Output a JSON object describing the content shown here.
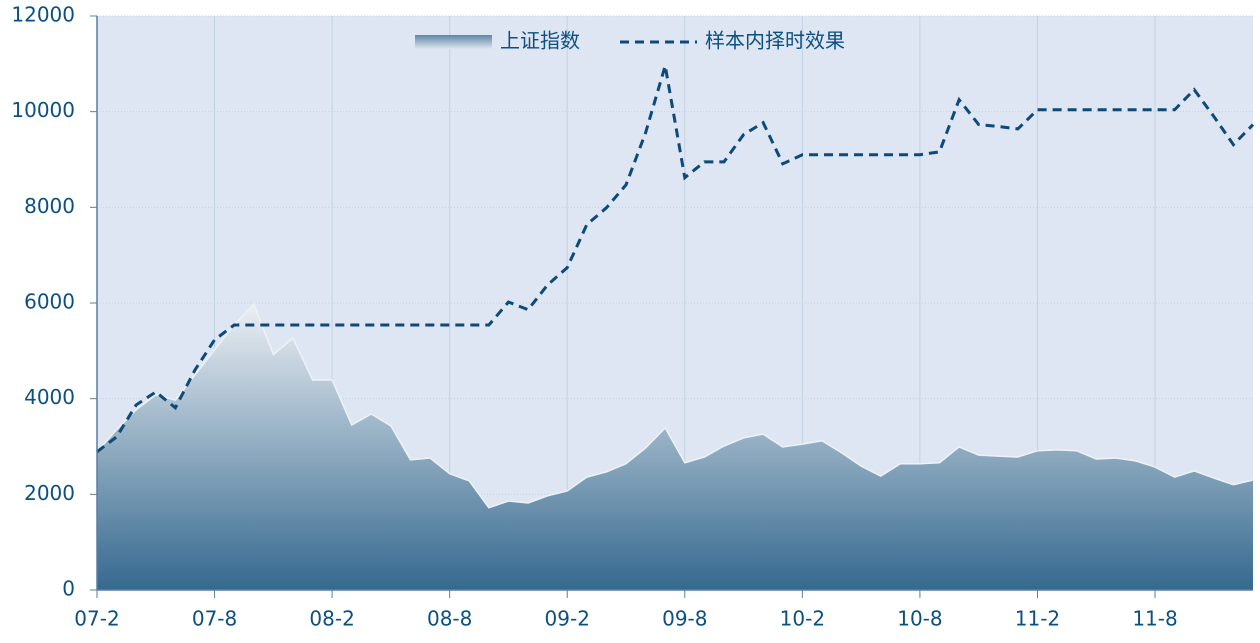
{
  "chart_data": {
    "type": "line",
    "categories": [
      "07-2",
      null,
      null,
      null,
      null,
      null,
      "07-8",
      null,
      null,
      null,
      null,
      null,
      "08-2",
      null,
      null,
      null,
      null,
      null,
      "08-8",
      null,
      null,
      null,
      null,
      null,
      "09-2",
      null,
      null,
      null,
      null,
      null,
      "09-8",
      null,
      null,
      null,
      null,
      null,
      "10-2",
      null,
      null,
      null,
      null,
      null,
      "10-8",
      null,
      null,
      null,
      null,
      null,
      "11-2",
      null,
      null,
      null,
      null,
      null,
      "11-8",
      null,
      null,
      null,
      null,
      null
    ],
    "series": [
      {
        "name": "上证指数",
        "type": "area",
        "color": "#3a6f97",
        "values": [
          2890,
          3350,
          3770,
          4080,
          3970,
          4500,
          5020,
          5540,
          5980,
          4920,
          5270,
          4390,
          4390,
          3450,
          3680,
          3430,
          2720,
          2760,
          2430,
          2280,
          1720,
          1860,
          1820,
          1970,
          2070,
          2360,
          2470,
          2640,
          2970,
          3390,
          2660,
          2780,
          3010,
          3180,
          3260,
          2990,
          3050,
          3120,
          2870,
          2590,
          2380,
          2640,
          2640,
          2660,
          2990,
          2820,
          2800,
          2780,
          2910,
          2930,
          2910,
          2740,
          2760,
          2700,
          2570,
          2360,
          2490,
          2340,
          2200,
          2300
        ]
      },
      {
        "name": "样本内择时效果",
        "type": "line",
        "dash": true,
        "color": "#0d4a78",
        "values": [
          2890,
          3200,
          3870,
          4140,
          3810,
          4600,
          5230,
          5540,
          5540,
          5540,
          5540,
          5540,
          5540,
          5540,
          5540,
          5540,
          5540,
          5540,
          5540,
          5540,
          5540,
          6020,
          5860,
          6380,
          6740,
          7640,
          7990,
          8470,
          9560,
          10960,
          8620,
          8950,
          8950,
          9520,
          9770,
          8910,
          9100,
          9100,
          9100,
          9100,
          9100,
          9100,
          9100,
          9160,
          10250,
          9730,
          9690,
          9640,
          10040,
          10040,
          10040,
          10040,
          10040,
          10040,
          10040,
          10040,
          10460,
          9900,
          9310,
          9730
        ]
      }
    ],
    "ylim": [
      0,
      12000
    ],
    "yticks": [
      0,
      2000,
      4000,
      6000,
      8000,
      10000,
      12000
    ],
    "grid": true
  }
}
